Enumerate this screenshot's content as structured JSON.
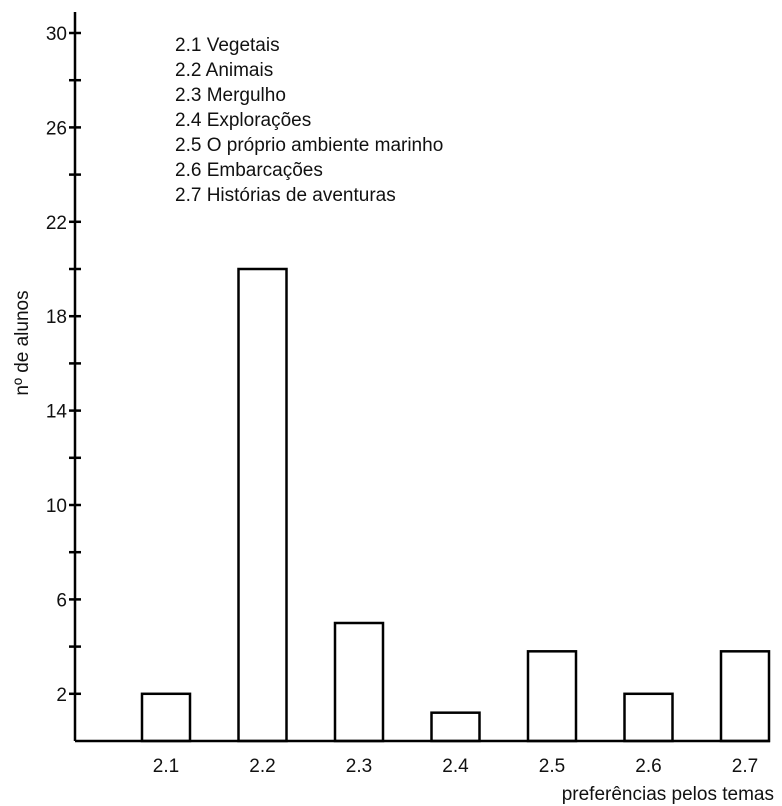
{
  "chart_data": {
    "type": "bar",
    "categories": [
      "2.1",
      "2.2",
      "2.3",
      "2.4",
      "2.5",
      "2.6",
      "2.7"
    ],
    "values": [
      2,
      20,
      5,
      1.2,
      3.8,
      2,
      3.8
    ],
    "xlabel": "preferências pelos temas",
    "ylabel": "nº de alunos",
    "ylim": [
      0,
      31
    ],
    "yticks": [
      2,
      6,
      10,
      14,
      18,
      22,
      26,
      30
    ],
    "minor_yticks": [
      4,
      8,
      12,
      16,
      20,
      24,
      28
    ],
    "grid": false,
    "legend": [
      "2.1 Vegetais",
      "2.2 Animais",
      "2.3 Mergulho",
      "2.4 Explorações",
      "2.5 O próprio ambiente marinho",
      "2.6 Embarcações",
      "2.7 Histórias de aventuras"
    ],
    "legend_position": "top-left",
    "colors": {
      "bar_fill": "#ffffff",
      "bar_stroke": "#000000"
    }
  }
}
